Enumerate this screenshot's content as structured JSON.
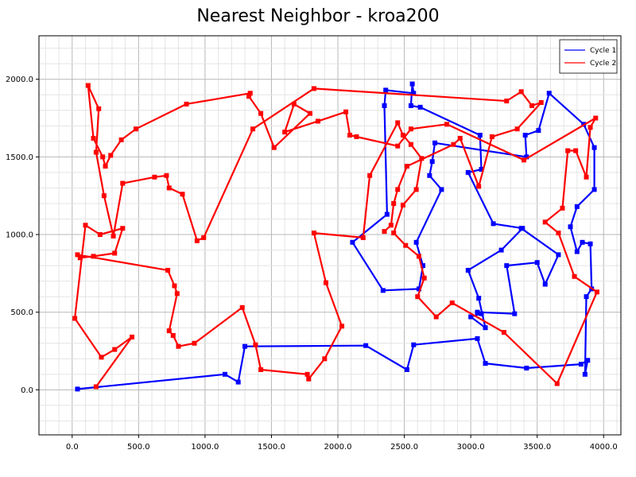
{
  "chart_data": {
    "type": "line",
    "title": "Nearest Neighbor - kroa200",
    "xlabel": "",
    "ylabel": "",
    "xlim": [
      -250,
      4130
    ],
    "ylim": [
      -290,
      2280
    ],
    "xticks": [
      0,
      500,
      1000,
      1500,
      2000,
      2500,
      3000,
      3500,
      4000
    ],
    "yticks": [
      0,
      500,
      1000,
      1500,
      2000
    ],
    "xtick_labels": [
      "0.0",
      "500.0",
      "1000.0",
      "1500.0",
      "2000.0",
      "2500.0",
      "3000.0",
      "3500.0",
      "4000.0"
    ],
    "ytick_labels": [
      "0.0",
      "500.0",
      "1000.0",
      "1500.0",
      "2000.0"
    ],
    "grid": true,
    "legend_position": "top-right",
    "series": [
      {
        "name": "Cycle 1",
        "color": "#0000ff",
        "points": [
          [
            40,
            5
          ],
          [
            1150,
            100
          ],
          [
            1250,
            50
          ],
          [
            1300,
            280
          ],
          [
            2210,
            285
          ],
          [
            2520,
            130
          ],
          [
            2570,
            290
          ],
          [
            3050,
            330
          ],
          [
            3110,
            170
          ],
          [
            3420,
            140
          ],
          [
            3830,
            165
          ],
          [
            3880,
            190
          ],
          [
            3860,
            100
          ],
          [
            3870,
            600
          ],
          [
            3910,
            650
          ],
          [
            3900,
            940
          ],
          [
            3840,
            950
          ],
          [
            3800,
            890
          ],
          [
            3750,
            1050
          ],
          [
            3800,
            1180
          ],
          [
            3930,
            1290
          ],
          [
            3930,
            1560
          ],
          [
            3850,
            1710
          ],
          [
            3590,
            1910
          ],
          [
            3510,
            1670
          ],
          [
            3410,
            1640
          ],
          [
            3420,
            1500
          ],
          [
            2730,
            1590
          ],
          [
            2710,
            1470
          ],
          [
            2690,
            1380
          ],
          [
            2780,
            1290
          ],
          [
            2590,
            950
          ],
          [
            2640,
            800
          ],
          [
            2610,
            650
          ],
          [
            2340,
            640
          ],
          [
            2110,
            950
          ],
          [
            2370,
            1130
          ],
          [
            2350,
            1830
          ],
          [
            2360,
            1930
          ],
          [
            2570,
            1910
          ],
          [
            2560,
            1970
          ],
          [
            2550,
            1830
          ],
          [
            2620,
            1820
          ],
          [
            3070,
            1640
          ],
          [
            3080,
            1420
          ],
          [
            2980,
            1400
          ],
          [
            3170,
            1070
          ],
          [
            3390,
            1040
          ],
          [
            3230,
            900
          ],
          [
            2980,
            770
          ],
          [
            3060,
            590
          ],
          [
            3110,
            400
          ],
          [
            3000,
            470
          ],
          [
            3080,
            490
          ],
          [
            3050,
            500
          ],
          [
            3330,
            490
          ],
          [
            3270,
            800
          ],
          [
            3500,
            820
          ],
          [
            3560,
            680
          ],
          [
            3660,
            870
          ],
          [
            3380,
            1040
          ]
        ]
      },
      {
        "name": "Cycle 2",
        "color": "#ff0000",
        "points": [
          [
            180,
            20
          ],
          [
            450,
            340
          ],
          [
            320,
            260
          ],
          [
            220,
            210
          ],
          [
            20,
            460
          ],
          [
            100,
            1060
          ],
          [
            210,
            1000
          ],
          [
            380,
            1040
          ],
          [
            320,
            880
          ],
          [
            160,
            860
          ],
          [
            60,
            850
          ],
          [
            40,
            870
          ],
          [
            720,
            770
          ],
          [
            770,
            670
          ],
          [
            790,
            620
          ],
          [
            730,
            380
          ],
          [
            760,
            350
          ],
          [
            800,
            280
          ],
          [
            920,
            300
          ],
          [
            1280,
            530
          ],
          [
            1380,
            290
          ],
          [
            1420,
            130
          ],
          [
            1770,
            100
          ],
          [
            1780,
            70
          ],
          [
            1900,
            200
          ],
          [
            2030,
            410
          ],
          [
            1910,
            690
          ],
          [
            1820,
            1010
          ],
          [
            2190,
            980
          ],
          [
            2240,
            1380
          ],
          [
            2450,
            1720
          ],
          [
            2490,
            1640
          ],
          [
            2550,
            1580
          ],
          [
            2630,
            1490
          ],
          [
            2590,
            1290
          ],
          [
            2490,
            1190
          ],
          [
            2420,
            1010
          ],
          [
            2510,
            930
          ],
          [
            2610,
            860
          ],
          [
            2650,
            720
          ],
          [
            2600,
            600
          ],
          [
            2740,
            470
          ],
          [
            2860,
            560
          ],
          [
            3250,
            370
          ],
          [
            3650,
            40
          ],
          [
            3950,
            630
          ],
          [
            3780,
            730
          ],
          [
            3660,
            1010
          ],
          [
            3560,
            1080
          ],
          [
            3690,
            1170
          ],
          [
            3730,
            1540
          ],
          [
            3790,
            1540
          ],
          [
            3870,
            1370
          ],
          [
            3900,
            1690
          ],
          [
            3940,
            1750
          ],
          [
            3400,
            1480
          ],
          [
            2820,
            1710
          ],
          [
            2550,
            1680
          ],
          [
            2450,
            1570
          ],
          [
            2140,
            1630
          ],
          [
            2090,
            1640
          ],
          [
            2060,
            1790
          ],
          [
            1850,
            1730
          ],
          [
            1600,
            1660
          ],
          [
            1670,
            1840
          ],
          [
            1790,
            1780
          ],
          [
            1520,
            1560
          ],
          [
            1420,
            1780
          ],
          [
            1330,
            1890
          ],
          [
            1340,
            1910
          ],
          [
            860,
            1840
          ],
          [
            480,
            1680
          ],
          [
            370,
            1610
          ],
          [
            290,
            1510
          ],
          [
            250,
            1440
          ],
          [
            230,
            1500
          ],
          [
            160,
            1620
          ],
          [
            120,
            1960
          ],
          [
            200,
            1810
          ],
          [
            180,
            1530
          ],
          [
            240,
            1250
          ],
          [
            310,
            990
          ],
          [
            380,
            1330
          ],
          [
            620,
            1370
          ],
          [
            710,
            1380
          ],
          [
            730,
            1300
          ],
          [
            830,
            1260
          ],
          [
            940,
            960
          ],
          [
            990,
            980
          ],
          [
            1360,
            1680
          ],
          [
            1820,
            1940
          ],
          [
            3270,
            1860
          ],
          [
            3380,
            1920
          ],
          [
            3460,
            1830
          ],
          [
            3530,
            1850
          ],
          [
            3350,
            1680
          ],
          [
            3160,
            1630
          ],
          [
            3060,
            1310
          ],
          [
            2920,
            1620
          ],
          [
            2870,
            1580
          ],
          [
            2520,
            1440
          ],
          [
            2450,
            1290
          ],
          [
            2420,
            1200
          ],
          [
            2400,
            1060
          ],
          [
            2350,
            1020
          ]
        ]
      }
    ]
  }
}
